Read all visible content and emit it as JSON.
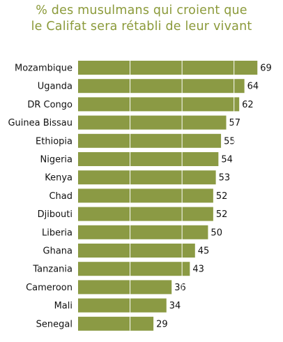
{
  "chart_data": {
    "type": "bar",
    "orientation": "horizontal",
    "title_line1": "% des musulmans qui croient que",
    "title_line2": "le Califat sera rétabli de leur vivant",
    "categories": [
      "Mozambique",
      "Uganda",
      "DR Congo",
      "Guinea Bissau",
      "Ethiopia",
      "Nigeria",
      "Kenya",
      "Chad",
      "Djibouti",
      "Liberia",
      "Ghana",
      "Tanzania",
      "Cameroon",
      "Mali",
      "Senegal"
    ],
    "values": [
      69,
      64,
      62,
      57,
      55,
      54,
      53,
      52,
      52,
      50,
      45,
      43,
      36,
      34,
      29
    ],
    "value_labels": [
      "69",
      "64",
      "62",
      "57",
      "55",
      "54",
      "53",
      "52",
      "52",
      "50",
      "45",
      "43",
      "36",
      "34",
      "29"
    ],
    "xlim": [
      0,
      70
    ],
    "gridlines_at": [
      20,
      40,
      60
    ],
    "grid": true,
    "bar_color": "#8b9a44",
    "grid_color": "#ffffff",
    "title_color": "#8b9a3a"
  }
}
